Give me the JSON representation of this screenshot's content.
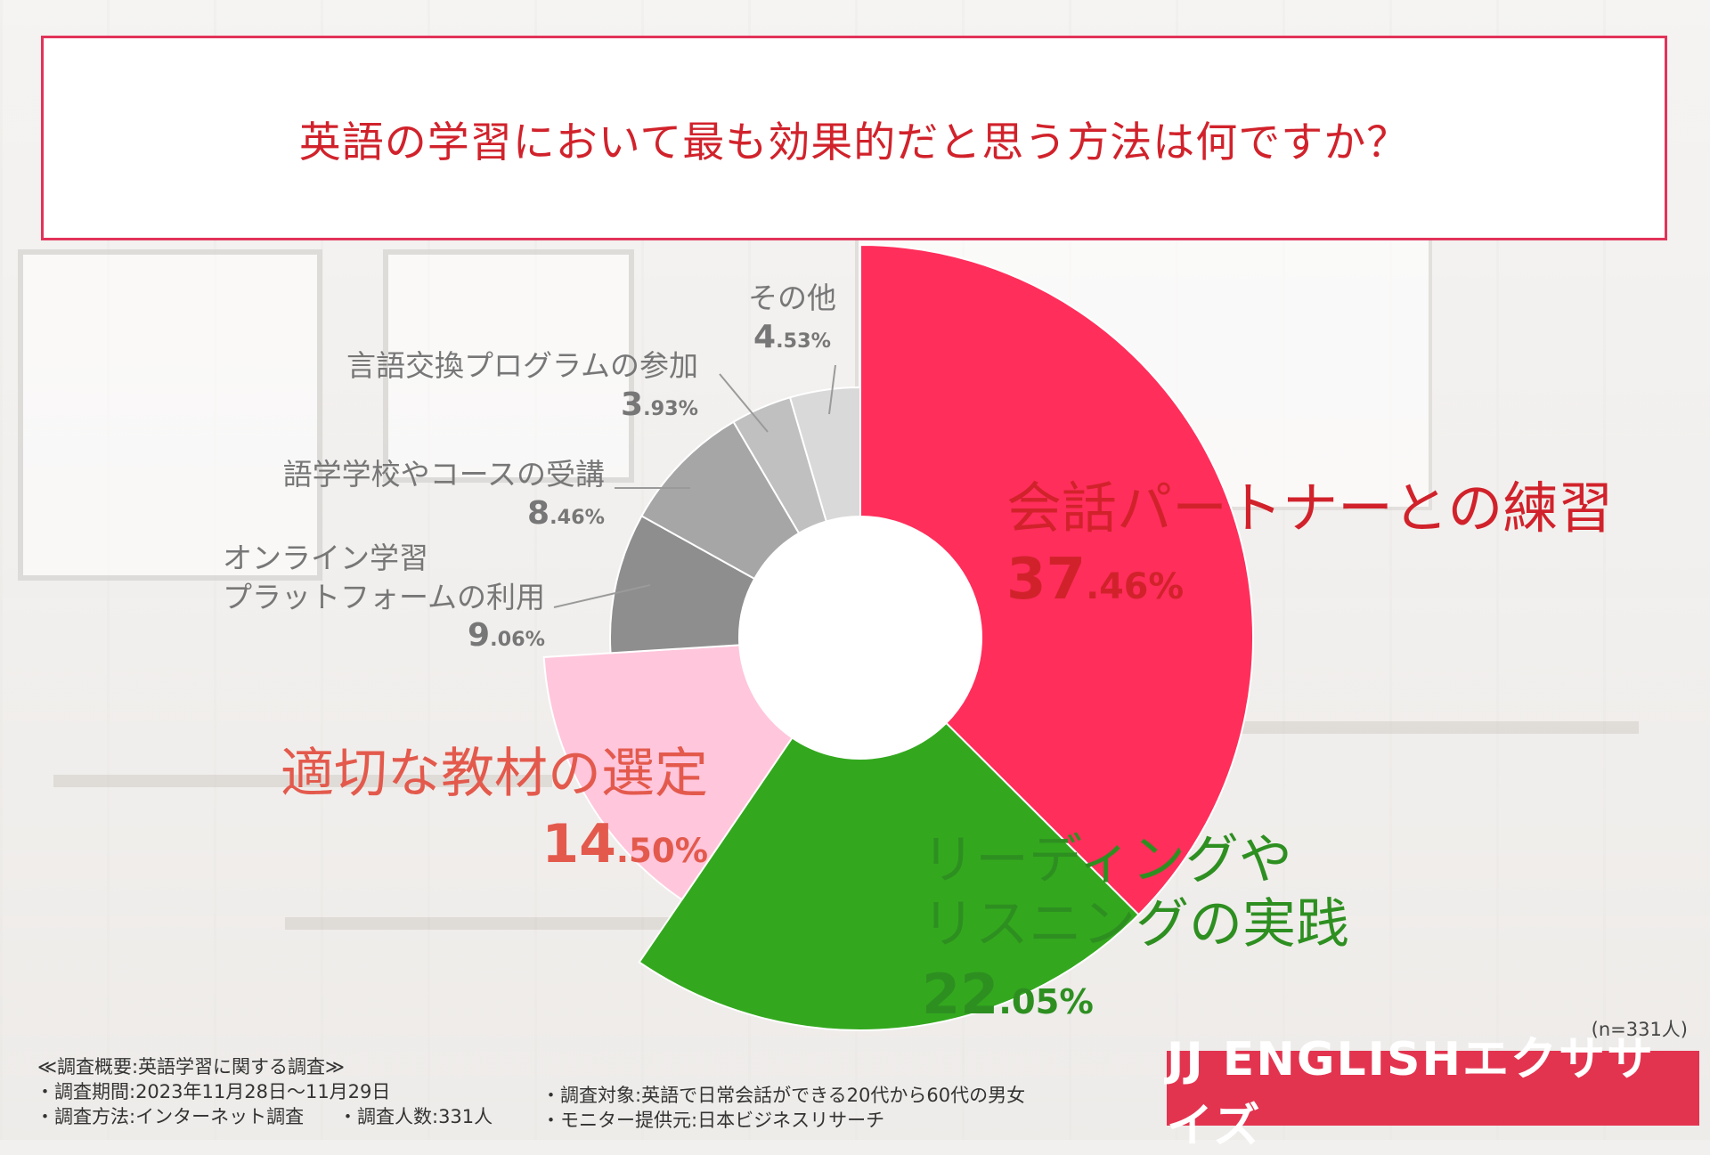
{
  "title": "英語の学習において最も効果的だと思う方法は何ですか？",
  "chart_data": {
    "type": "pie",
    "variant": "donut",
    "unit": "%",
    "slices": [
      {
        "label": "会話パートナーとの練習",
        "value": 37.46,
        "pct_int": "37",
        "pct_dec": ".46%",
        "color": "#ff2e5b",
        "text_color": "#d1222b"
      },
      {
        "label": "リーディングやリスニングの実践",
        "label_lines": [
          "リーディングや",
          "リスニングの実践"
        ],
        "value": 22.05,
        "pct_int": "22",
        "pct_dec": ".05%",
        "color": "#33a81e",
        "text_color": "#2e8f21"
      },
      {
        "label": "適切な教材の選定",
        "value": 14.5,
        "pct_int": "14",
        "pct_dec": ".50%",
        "color": "#ffc6dc",
        "text_color": "#e35a4d"
      },
      {
        "label": "オンライン学習プラットフォームの利用",
        "label_lines": [
          "オンライン学習",
          "プラットフォームの利用"
        ],
        "value": 9.06,
        "pct_int": "9",
        "pct_dec": ".06%",
        "color": "#8e8e8e",
        "text_color": "#777777"
      },
      {
        "label": "語学学校やコースの受講",
        "value": 8.46,
        "pct_int": "8",
        "pct_dec": ".46%",
        "color": "#a6a6a6",
        "text_color": "#777777"
      },
      {
        "label": "言語交換プログラムの参加",
        "value": 3.93,
        "pct_int": "3",
        "pct_dec": ".93%",
        "color": "#c0c0c0",
        "text_color": "#777777"
      },
      {
        "label": "その他",
        "value": 4.53,
        "pct_int": "4",
        "pct_dec": ".53%",
        "color": "#d9d9d9",
        "text_color": "#777777"
      }
    ],
    "n_note": "(n=331人)"
  },
  "survey": {
    "heading": "≪調査概要:英語学習に関する調査≫",
    "period": "・調査期間:2023年11月28日〜11月29日",
    "method": "・調査方法:インターネット調査",
    "count": "・調査人数:331人",
    "target": "・調査対象:英語で日常会話ができる20代から60代の男女",
    "provider": "・モニター提供元:日本ビジネスリサーチ"
  },
  "logo": "JJ ENGLISHエクササイズ"
}
